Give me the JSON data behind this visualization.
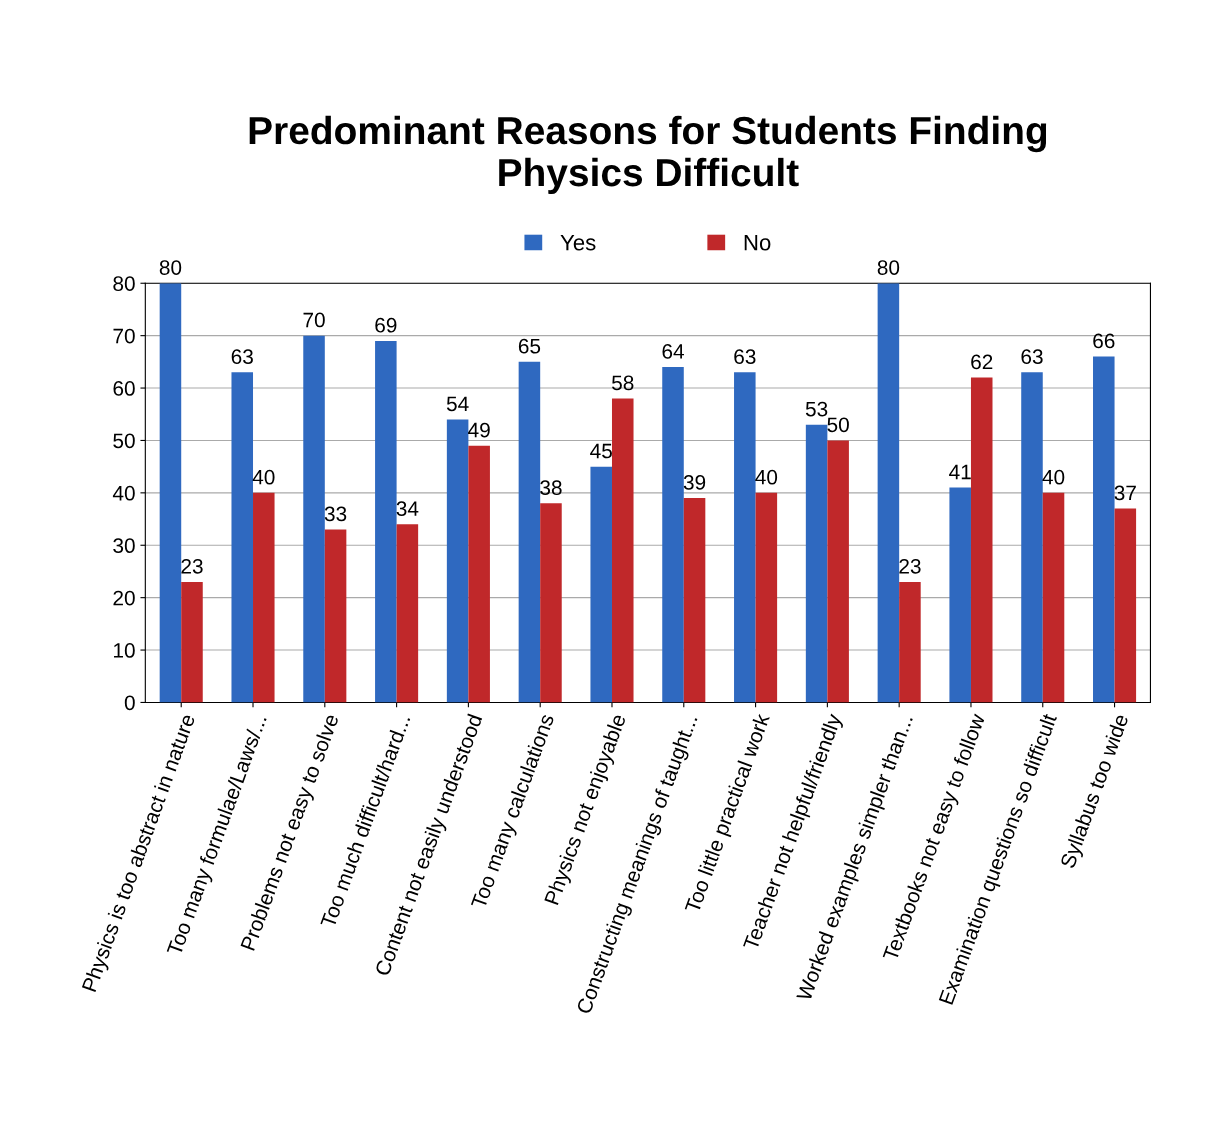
{
  "chart_data": {
    "type": "bar",
    "title": "Predominant Reasons for Students Finding\nPhysics Difficult",
    "categories": [
      "Physics is too abstract in nature",
      "Too many formulae/Laws/...",
      "Problems not easy to solve",
      "Too much difficult/hard...",
      "Content not easily understood",
      "Too many calculations",
      "Physics not enjoyable",
      "Constructing meanings of taught...",
      "Too little practical work",
      "Teacher not helpful/friendly",
      "Worked examples simpler than...",
      "Textbooks not easy to follow",
      "Examination questions so difficult",
      "Syllabus too wide"
    ],
    "series": [
      {
        "name": "Yes",
        "color": "#2f69c0",
        "values": [
          80,
          63,
          70,
          69,
          54,
          65,
          45,
          64,
          63,
          53,
          80,
          41,
          63,
          66
        ]
      },
      {
        "name": "No",
        "color": "#c0282a",
        "values": [
          23,
          40,
          33,
          34,
          49,
          38,
          58,
          39,
          40,
          50,
          23,
          62,
          40,
          37
        ]
      }
    ],
    "ylim": [
      0,
      80
    ],
    "yticks": [
      0,
      10,
      20,
      30,
      40,
      50,
      60,
      70,
      80
    ],
    "grid": "y",
    "legend": "top",
    "data_labels": true
  }
}
